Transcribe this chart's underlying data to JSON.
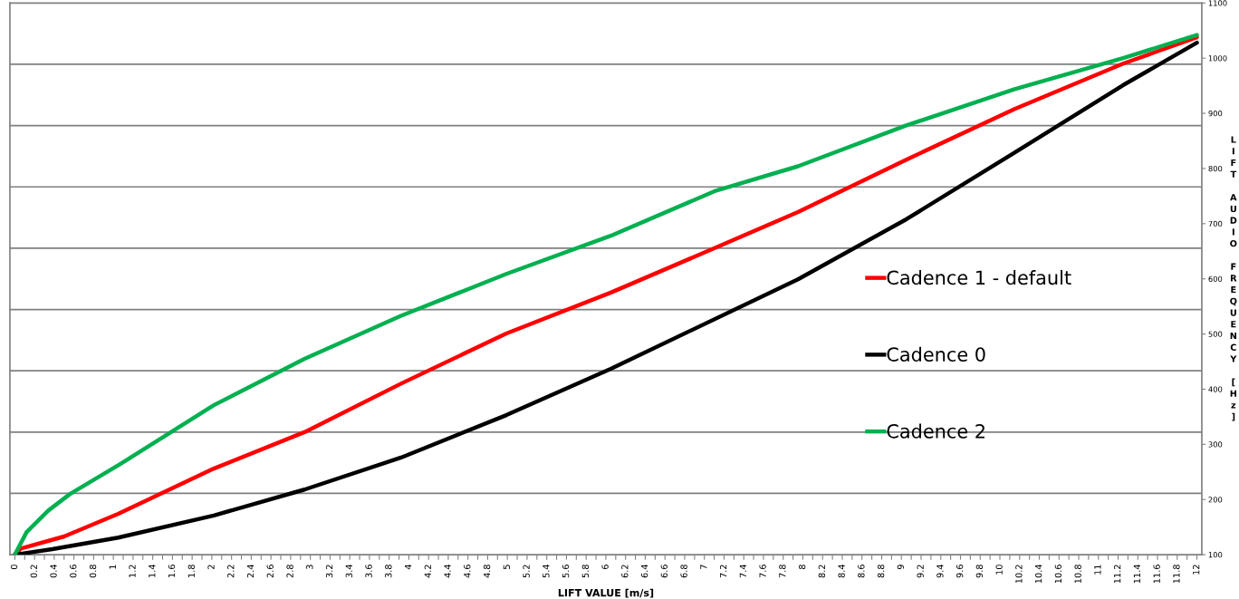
{
  "chart_data": {
    "type": "line",
    "xlabel": "LIFT VALUE [m/s]",
    "ylabel": "LIFT AUDIO FREQUENCY [Hz]",
    "xlim": [
      -0.05,
      12.05
    ],
    "xticks": [
      0,
      {
        "value": 0.1,
        "label": null
      },
      0.2,
      {
        "value": 0.3,
        "label": null
      },
      0.4,
      {
        "value": 0.5,
        "label": null
      },
      0.6,
      {
        "value": 0.7,
        "label": null
      },
      0.8,
      {
        "value": 0.9,
        "label": null
      },
      1,
      {
        "value": 1.1,
        "label": null
      },
      1.2,
      {
        "value": 1.3,
        "label": null
      },
      1.4,
      {
        "value": 1.5,
        "label": null
      },
      1.6,
      {
        "value": 1.7,
        "label": null
      },
      1.8,
      {
        "value": 1.9,
        "label": null
      },
      2,
      {
        "value": 2.1,
        "label": null
      },
      2.2,
      {
        "value": 2.3,
        "label": null
      },
      2.4,
      {
        "value": 2.5,
        "label": null
      },
      2.6,
      {
        "value": 2.7,
        "label": null
      },
      2.8,
      {
        "value": 2.9,
        "label": null
      },
      3,
      {
        "value": 3.1,
        "label": null
      },
      3.2,
      {
        "value": 3.3,
        "label": null
      },
      3.4,
      {
        "value": 3.5,
        "label": null
      },
      3.6,
      {
        "value": 3.7,
        "label": null
      },
      3.8,
      {
        "value": 3.9,
        "label": null
      },
      4,
      {
        "value": 4.1,
        "label": null
      },
      4.2,
      {
        "value": 4.3,
        "label": null
      },
      4.4,
      {
        "value": 4.5,
        "label": null
      },
      4.6,
      {
        "value": 4.7,
        "label": null
      },
      4.8,
      {
        "value": 4.9,
        "label": null
      },
      5,
      {
        "value": 5.1,
        "label": null
      },
      5.2,
      {
        "value": 5.3,
        "label": null
      },
      5.4,
      {
        "value": 5.5,
        "label": null
      },
      5.6,
      {
        "value": 5.7,
        "label": null
      },
      5.8,
      {
        "value": 5.9,
        "label": null
      },
      6,
      {
        "value": 6.1,
        "label": null
      },
      6.2,
      {
        "value": 6.3,
        "label": null
      },
      6.4,
      {
        "value": 6.5,
        "label": null
      },
      6.6,
      {
        "value": 6.7,
        "label": null
      },
      6.8,
      {
        "value": 6.9,
        "label": null
      },
      7,
      {
        "value": 7.1,
        "label": null
      },
      7.2,
      {
        "value": 7.3,
        "label": null
      },
      7.4,
      {
        "value": 7.5,
        "label": null
      },
      7.6,
      {
        "value": 7.7,
        "label": null
      },
      7.8,
      {
        "value": 7.9,
        "label": null
      },
      8,
      {
        "value": 8.1,
        "label": null
      },
      8.2,
      {
        "value": 8.3,
        "label": null
      },
      8.4,
      {
        "value": 8.5,
        "label": null
      },
      8.6,
      {
        "value": 8.7,
        "label": null
      },
      8.8,
      {
        "value": 8.9,
        "label": null
      },
      9,
      {
        "value": 9.1,
        "label": null
      },
      9.2,
      {
        "value": 9.3,
        "label": null
      },
      9.4,
      {
        "value": 9.5,
        "label": null
      },
      9.6,
      {
        "value": 9.7,
        "label": null
      },
      9.8,
      {
        "value": 9.9,
        "label": null
      },
      10,
      {
        "value": 10.1,
        "label": null
      },
      10.2,
      {
        "value": 10.3,
        "label": null
      },
      10.4,
      {
        "value": 10.5,
        "label": null
      },
      10.6,
      {
        "value": 10.7,
        "label": null
      },
      10.8,
      {
        "value": 10.9,
        "label": null
      },
      11,
      {
        "value": 11.1,
        "label": null
      },
      11.2,
      {
        "value": 11.3,
        "label": null
      },
      11.4,
      {
        "value": 11.5,
        "label": null
      },
      11.6,
      {
        "value": 11.7,
        "label": null
      },
      11.8,
      {
        "value": 11.9,
        "label": null
      },
      12
    ],
    "ylim": [
      100,
      1100
    ],
    "yticks": [
      100,
      200,
      300,
      400,
      500,
      600,
      700,
      800,
      900,
      1000,
      1100
    ],
    "grid": false,
    "legend": "right",
    "ref_lines": [
      {
        "axis": "y",
        "value": 211.1,
        "color": "#808080"
      },
      {
        "axis": "y",
        "value": 322.2,
        "color": "#808080"
      },
      {
        "axis": "y",
        "value": 433.3,
        "color": "#808080"
      },
      {
        "axis": "y",
        "value": 544.4,
        "color": "#808080"
      },
      {
        "axis": "y",
        "value": 655.6,
        "color": "#808080"
      },
      {
        "axis": "y",
        "value": 766.7,
        "color": "#808080"
      },
      {
        "axis": "y",
        "value": 877.8,
        "color": "#808080"
      },
      {
        "axis": "y",
        "value": 988.9,
        "color": "#808080"
      }
    ],
    "series": [
      {
        "name": "Cadence 1 - default",
        "color": "#ff0000",
        "x": [
          0,
          0.06,
          0.5,
          1.05,
          2.02,
          2.94,
          3.92,
          4.99,
          6.05,
          7.12,
          7.95,
          9.05,
          10.15,
          11.25,
          12
        ],
        "values": [
          100,
          111,
          133,
          174,
          256,
          322,
          410,
          501,
          575,
          657,
          721,
          816,
          908,
          990,
          1038
        ]
      },
      {
        "name": "Cadence 0",
        "color": "#000000",
        "x": [
          0,
          0.38,
          1.05,
          2.02,
          2.94,
          3.92,
          4.99,
          6.05,
          7.95,
          9.05,
          10.15,
          11.25,
          12
        ],
        "values": [
          100,
          110,
          131,
          171,
          218,
          276,
          353,
          437,
          599,
          708,
          829,
          951,
          1028
        ]
      },
      {
        "name": "Cadence 2",
        "color": "#00b050",
        "x": [
          0,
          0.12,
          0.34,
          0.56,
          1.05,
          2.02,
          2.94,
          3.92,
          4.99,
          6.05,
          7.12,
          7.95,
          9.05,
          10.15,
          11.25,
          12
        ],
        "values": [
          100,
          141,
          180,
          210,
          262,
          371,
          455,
          533,
          609,
          678,
          760,
          804,
          878,
          944,
          1000,
          1042
        ]
      }
    ]
  }
}
